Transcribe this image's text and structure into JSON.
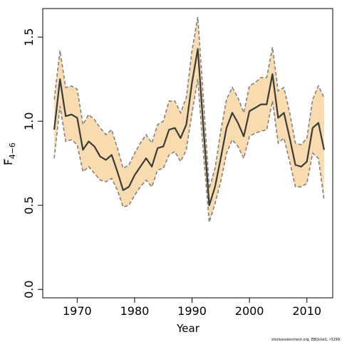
{
  "chart_data": {
    "type": "line",
    "xlabel": "Year",
    "ylabel_main": "F",
    "ylabel_sub": "4−6",
    "credit": "stockassessment.org, EBQcke1, r3299",
    "xlim": [
      1964,
      2014.5
    ],
    "ylim": [
      -0.05,
      1.67
    ],
    "xticks": [
      1970,
      1980,
      1990,
      2000,
      2010
    ],
    "xtick_labels": [
      "1970",
      "1980",
      "1990",
      "2000",
      "2010"
    ],
    "yticks": [
      0.0,
      0.5,
      1.0,
      1.5
    ],
    "ytick_labels": [
      "0.0",
      "0.5",
      "1.0",
      "1.5"
    ],
    "colors": {
      "band": "#f8dcb0",
      "line": "#3a3a3a",
      "bounds": "#808080"
    },
    "x": [
      1966,
      1967,
      1968,
      1969,
      1970,
      1971,
      1972,
      1973,
      1974,
      1975,
      1976,
      1977,
      1978,
      1979,
      1980,
      1981,
      1982,
      1983,
      1984,
      1985,
      1986,
      1987,
      1988,
      1989,
      1990,
      1991,
      1992,
      1993,
      1994,
      1995,
      1996,
      1997,
      1998,
      1999,
      2000,
      2001,
      2002,
      2003,
      2004,
      2005,
      2006,
      2007,
      2008,
      2009,
      2010,
      2011,
      2012,
      2013
    ],
    "series": [
      {
        "role": "estimate",
        "values": [
          0.95,
          1.25,
          1.03,
          1.04,
          1.02,
          0.83,
          0.88,
          0.85,
          0.79,
          0.77,
          0.8,
          0.7,
          0.59,
          0.61,
          0.68,
          0.73,
          0.78,
          0.73,
          0.84,
          0.85,
          0.95,
          0.96,
          0.9,
          0.98,
          1.23,
          1.43,
          0.95,
          0.5,
          0.61,
          0.78,
          0.96,
          1.05,
          0.99,
          0.91,
          1.06,
          1.08,
          1.1,
          1.1,
          1.28,
          1.02,
          1.05,
          0.9,
          0.74,
          0.73,
          0.76,
          0.96,
          0.99,
          0.83
        ]
      },
      {
        "role": "upper",
        "values": [
          1.13,
          1.42,
          1.2,
          1.21,
          1.19,
          0.98,
          1.04,
          1.01,
          0.96,
          0.92,
          0.95,
          0.84,
          0.72,
          0.74,
          0.81,
          0.87,
          0.92,
          0.87,
          0.98,
          1.0,
          1.12,
          1.12,
          1.05,
          1.14,
          1.42,
          1.62,
          1.12,
          0.6,
          0.72,
          0.94,
          1.13,
          1.2,
          1.14,
          1.05,
          1.21,
          1.23,
          1.26,
          1.26,
          1.44,
          1.18,
          1.2,
          1.05,
          0.87,
          0.86,
          0.9,
          1.13,
          1.21,
          1.14
        ]
      },
      {
        "role": "lower",
        "values": [
          0.78,
          1.09,
          0.88,
          0.89,
          0.86,
          0.7,
          0.73,
          0.69,
          0.65,
          0.64,
          0.66,
          0.59,
          0.49,
          0.5,
          0.56,
          0.61,
          0.65,
          0.61,
          0.71,
          0.72,
          0.8,
          0.82,
          0.76,
          0.83,
          1.05,
          1.25,
          0.8,
          0.4,
          0.51,
          0.64,
          0.81,
          0.89,
          0.85,
          0.78,
          0.91,
          0.93,
          0.94,
          0.95,
          1.12,
          0.87,
          0.9,
          0.76,
          0.61,
          0.61,
          0.63,
          0.81,
          0.78,
          0.53
        ]
      }
    ]
  }
}
